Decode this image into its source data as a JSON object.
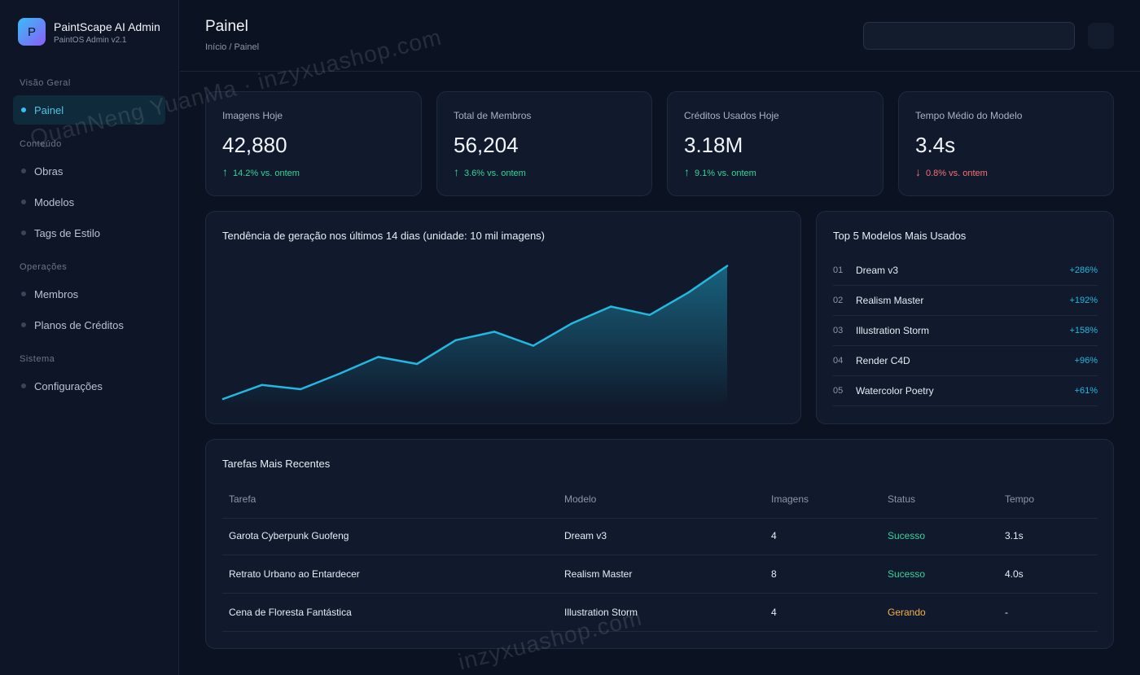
{
  "brand": {
    "logo_letter": "P",
    "title": "PaintScape AI Admin",
    "subtitle": "PaintOS Admin v2.1"
  },
  "sidebar": {
    "sections": [
      {
        "label": "Visão Geral",
        "items": [
          {
            "label": "Painel",
            "active": true
          }
        ]
      },
      {
        "label": "Conteúdo",
        "items": [
          {
            "label": "Obras"
          },
          {
            "label": "Modelos"
          },
          {
            "label": "Tags de Estilo"
          }
        ]
      },
      {
        "label": "Operações",
        "items": [
          {
            "label": "Membros"
          },
          {
            "label": "Planos de Créditos"
          }
        ]
      },
      {
        "label": "Sistema",
        "items": [
          {
            "label": "Configurações"
          }
        ]
      }
    ]
  },
  "header": {
    "title": "Painel",
    "breadcrumb": "Início / Painel"
  },
  "stats": [
    {
      "label": "Imagens Hoje",
      "value": "42,880",
      "delta": "14.2% vs. ontem",
      "direction": "up"
    },
    {
      "label": "Total de Membros",
      "value": "56,204",
      "delta": "3.6% vs. ontem",
      "direction": "up"
    },
    {
      "label": "Créditos Usados Hoje",
      "value": "3.18M",
      "delta": "9.1% vs. ontem",
      "direction": "up"
    },
    {
      "label": "Tempo Médio do Modelo",
      "value": "3.4s",
      "delta": "0.8% vs. ontem",
      "direction": "down"
    }
  ],
  "trend": {
    "title": "Tendência de geração nos últimos 14 dias (unidade: 10 mil imagens)"
  },
  "chart_data": {
    "type": "area",
    "title": "Tendência de geração nos últimos 14 dias (unidade: 10 mil imagens)",
    "x": [
      1,
      2,
      3,
      4,
      5,
      6,
      7,
      8,
      9,
      10,
      11,
      12,
      13,
      14
    ],
    "series": [
      {
        "values": [
          0.0,
          1.0,
          0.7,
          1.8,
          3.0,
          2.5,
          4.2,
          4.8,
          3.8,
          5.4,
          6.6,
          6.0,
          7.6,
          9.5
        ]
      }
    ],
    "ylim": [
      0,
      10
    ],
    "grid": false,
    "color": "#22b8e0"
  },
  "top_models": {
    "title": "Top 5 Modelos Mais Usados",
    "items": [
      {
        "rank": "01",
        "name": "Dream v3",
        "growth": "+286%"
      },
      {
        "rank": "02",
        "name": "Realism Master",
        "growth": "+192%"
      },
      {
        "rank": "03",
        "name": "Illustration Storm",
        "growth": "+158%"
      },
      {
        "rank": "04",
        "name": "Render C4D",
        "growth": "+96%"
      },
      {
        "rank": "05",
        "name": "Watercolor Poetry",
        "growth": "+61%"
      }
    ]
  },
  "tasks": {
    "title": "Tarefas Mais Recentes",
    "columns": [
      "Tarefa",
      "Modelo",
      "Imagens",
      "Status",
      "Tempo"
    ],
    "rows": [
      {
        "task": "Garota Cyberpunk Guofeng",
        "model": "Dream v3",
        "images": "4",
        "status": "Sucesso",
        "status_type": "success",
        "time": "3.1s"
      },
      {
        "task": "Retrato Urbano ao Entardecer",
        "model": "Realism Master",
        "images": "8",
        "status": "Sucesso",
        "status_type": "success",
        "time": "4.0s"
      },
      {
        "task": "Cena de Floresta Fantástica",
        "model": "Illustration Storm",
        "images": "4",
        "status": "Gerando",
        "status_type": "running",
        "time": "-"
      }
    ]
  },
  "watermarks": [
    "QuanNeng YuanMa · inzyxuashop.com",
    "inzyxuashop.com"
  ],
  "colors": {
    "accent": "#22b8e0",
    "up": "#34d399",
    "down": "#f87171",
    "running": "#f5b14a"
  }
}
